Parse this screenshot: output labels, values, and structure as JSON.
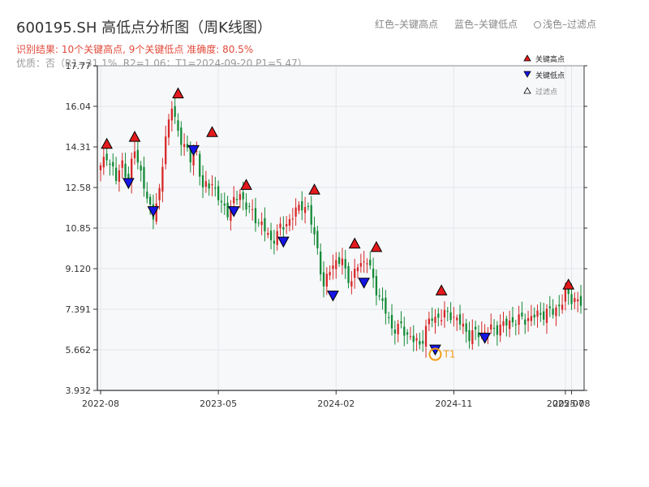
{
  "header": {
    "title": "600195.SH 高低点分析图（周K线图）",
    "result_line": "识别结果: 10个关键高点, 9个关键低点  准确度: 80.5%",
    "quality_line": "优质：否（R1=31.1%, R2=1.06；T1=2024-09-20 P1=5.47）"
  },
  "legend_top": {
    "red": "红色–关键高点",
    "blue": "蓝色–关键低点",
    "light": "浅色–过滤点"
  },
  "colors": {
    "up": "#d62728",
    "down": "#138a36",
    "high_marker": "#e41a1c",
    "low_marker": "#1515e6",
    "t1_circle": "#f39c12",
    "plot_bg": "#f7f8fa",
    "grid": "#e3e6ea"
  },
  "chart_data": {
    "type": "candlestick",
    "yticks": [
      "3.932",
      "5.662",
      "7.391",
      "9.120",
      "10.85",
      "12.58",
      "14.31",
      "16.04",
      "17.77"
    ],
    "ylim": [
      3.932,
      17.77
    ],
    "xlim": [
      0,
      155
    ],
    "xticks": [
      {
        "label": "2022-08",
        "pos": 0
      },
      {
        "label": "2023-05",
        "pos": 38
      },
      {
        "label": "2024-02",
        "pos": 76
      },
      {
        "label": "2024-11",
        "pos": 114
      },
      {
        "label": "2025-07",
        "pos": 150
      },
      {
        "label": "2025-08",
        "pos": 152
      }
    ],
    "legend": [
      {
        "label": "关键高点",
        "kind": "high"
      },
      {
        "label": "关键低点",
        "kind": "low"
      },
      {
        "label": "过滤点",
        "kind": "filtered"
      }
    ],
    "anchors": [
      [
        0,
        13.4
      ],
      [
        2,
        14.0
      ],
      [
        5,
        12.9
      ],
      [
        7,
        13.7
      ],
      [
        9,
        12.8
      ],
      [
        11,
        14.3
      ],
      [
        13,
        13.2
      ],
      [
        15,
        12.0
      ],
      [
        17,
        11.5
      ],
      [
        19,
        12.3
      ],
      [
        21,
        14.8
      ],
      [
        23,
        16.1
      ],
      [
        25,
        14.8
      ],
      [
        27,
        14.5
      ],
      [
        29,
        13.7
      ],
      [
        31,
        14.1
      ],
      [
        33,
        12.5
      ],
      [
        36,
        12.8
      ],
      [
        39,
        11.8
      ],
      [
        41,
        11.6
      ],
      [
        45,
        12.3
      ],
      [
        48,
        11.6
      ],
      [
        52,
        11.0
      ],
      [
        55,
        10.3
      ],
      [
        58,
        10.8
      ],
      [
        61,
        11.2
      ],
      [
        65,
        11.9
      ],
      [
        67,
        11.6
      ],
      [
        70,
        10.0
      ],
      [
        72,
        8.2
      ],
      [
        74,
        9.2
      ],
      [
        76,
        9.4
      ],
      [
        78,
        9.4
      ],
      [
        81,
        8.5
      ],
      [
        83,
        9.3
      ],
      [
        86,
        9.5
      ],
      [
        88,
        8.6
      ],
      [
        91,
        7.6
      ],
      [
        94,
        6.6
      ],
      [
        97,
        6.6
      ],
      [
        100,
        6.2
      ],
      [
        103,
        5.85
      ],
      [
        105,
        6.6
      ],
      [
        107,
        7.0
      ],
      [
        110,
        7.1
      ],
      [
        113,
        7.2
      ],
      [
        116,
        6.8
      ],
      [
        119,
        6.3
      ],
      [
        123,
        6.4
      ],
      [
        128,
        6.6
      ],
      [
        133,
        6.9
      ],
      [
        138,
        7.0
      ],
      [
        142,
        7.2
      ],
      [
        146,
        7.3
      ],
      [
        149,
        7.7
      ],
      [
        150,
        8.1
      ],
      [
        152,
        7.9
      ],
      [
        155,
        7.6
      ]
    ],
    "highs": [
      {
        "i": 2,
        "price": 14.25
      },
      {
        "i": 11,
        "price": 14.55
      },
      {
        "i": 25,
        "price": 16.4
      },
      {
        "i": 36,
        "price": 14.75
      },
      {
        "i": 47,
        "price": 12.5
      },
      {
        "i": 69,
        "price": 12.3
      },
      {
        "i": 82,
        "price": 10.0
      },
      {
        "i": 89,
        "price": 9.85
      },
      {
        "i": 110,
        "price": 8.0
      },
      {
        "i": 151,
        "price": 8.25
      }
    ],
    "lows": [
      {
        "i": 9,
        "price": 12.55
      },
      {
        "i": 17,
        "price": 11.35
      },
      {
        "i": 30,
        "price": 13.95
      },
      {
        "i": 43,
        "price": 11.35
      },
      {
        "i": 59,
        "price": 10.05
      },
      {
        "i": 75,
        "price": 7.75
      },
      {
        "i": 85,
        "price": 8.3
      },
      {
        "i": 108,
        "price": 5.45
      },
      {
        "i": 124,
        "price": 5.95
      }
    ],
    "t1": {
      "label": "T1",
      "i": 108,
      "price": 5.47
    }
  }
}
